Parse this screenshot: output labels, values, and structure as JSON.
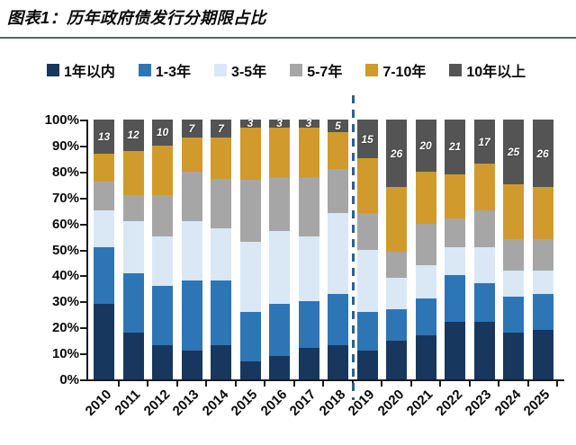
{
  "header": {
    "title": "图表1：历年政府债发行分期限占比"
  },
  "chart_data": {
    "type": "bar",
    "subtype": "stacked-100-percent",
    "title": "历年政府债发行分期限占比",
    "categories": [
      "2010",
      "2011",
      "2012",
      "2013",
      "2014",
      "2015",
      "2016",
      "2017",
      "2018",
      "2019",
      "2020",
      "2021",
      "2022",
      "2023",
      "2024",
      "2025"
    ],
    "series": [
      {
        "name": "1年以内",
        "color": "#17375E",
        "values": [
          29,
          18,
          13,
          11,
          13,
          7,
          9,
          12,
          13,
          11,
          15,
          17,
          22,
          22,
          18,
          19
        ]
      },
      {
        "name": "1-3年",
        "color": "#2E75B6",
        "values": [
          22,
          23,
          23,
          27,
          25,
          19,
          20,
          18,
          20,
          15,
          12,
          14,
          18,
          15,
          14,
          14
        ]
      },
      {
        "name": "3-5年",
        "color": "#DAE8F5",
        "values": [
          14,
          20,
          19,
          23,
          20,
          27,
          28,
          25,
          31,
          24,
          12,
          13,
          11,
          14,
          10,
          9
        ]
      },
      {
        "name": "5-7年",
        "color": "#A6A6A6",
        "values": [
          11,
          10,
          16,
          19,
          19,
          24,
          21,
          23,
          17,
          14,
          10,
          16,
          11,
          14,
          12,
          12
        ]
      },
      {
        "name": "7-10年",
        "color": "#D09B2C",
        "values": [
          11,
          17,
          19,
          13,
          16,
          20,
          19,
          19,
          14,
          21,
          25,
          20,
          17,
          18,
          21,
          20
        ]
      },
      {
        "name": "10年以上",
        "color": "#545454",
        "values": [
          13,
          12,
          10,
          7,
          7,
          3,
          3,
          3,
          5,
          15,
          26,
          20,
          21,
          17,
          25,
          26
        ],
        "data_labels": true
      }
    ],
    "y_tick_labels": [
      "100%",
      "90%",
      "80%",
      "70%",
      "60%",
      "50%",
      "40%",
      "30%",
      "20%",
      "10%",
      "0%"
    ],
    "ylim": [
      0,
      100
    ],
    "grid": false,
    "legend_position": "top",
    "axis_color": "#1a1a1a",
    "dashed_divider": {
      "between": [
        "2018",
        "2019"
      ],
      "color": "#2E5F8F"
    }
  }
}
